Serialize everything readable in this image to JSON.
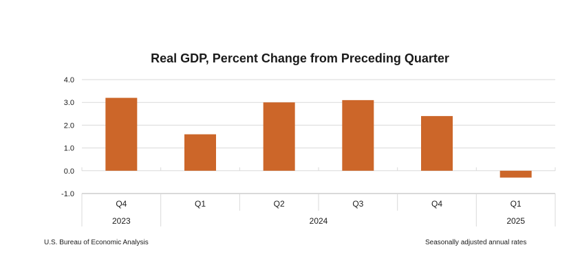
{
  "chart_data": {
    "type": "bar",
    "title": "Real GDP, Percent Change from Preceding Quarter",
    "categories": [
      "Q4",
      "Q1",
      "Q2",
      "Q3",
      "Q4",
      "Q1"
    ],
    "years": [
      {
        "label": "2023",
        "span": [
          0,
          0
        ]
      },
      {
        "label": "2024",
        "span": [
          1,
          4
        ]
      },
      {
        "label": "2025",
        "span": [
          5,
          5
        ]
      }
    ],
    "values": [
      3.2,
      1.6,
      3.0,
      3.1,
      2.4,
      -0.3
    ],
    "ylim": [
      -1.0,
      4.0
    ],
    "yticks": [
      "4.0",
      "3.0",
      "2.0",
      "1.0",
      "0.0",
      "-1.0"
    ],
    "grid": true,
    "bar_color": "#CC6629",
    "xlabel": "",
    "ylabel": ""
  },
  "footer": {
    "source": "U.S. Bureau of Economic Analysis",
    "note": "Seasonally adjusted annual rates"
  }
}
